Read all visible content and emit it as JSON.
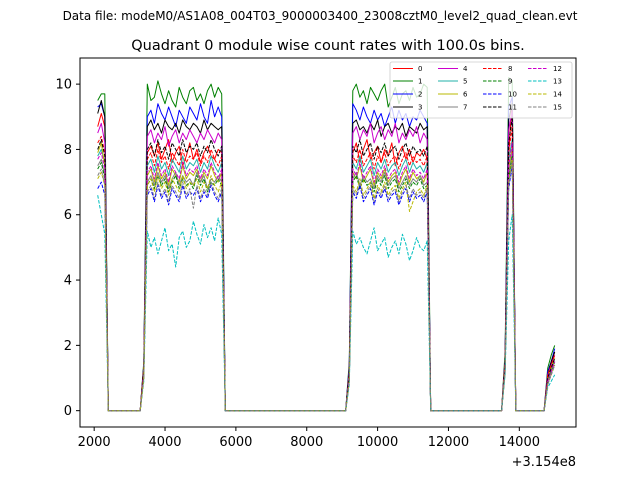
{
  "chart_data": {
    "type": "line",
    "suptitle": "Data file: modeM0/AS1A08_004T03_9000003400_23008cztM0_level2_quad_clean.evt",
    "title": "Quadrant 0 module wise count rates with 100.0s bins.",
    "xlabel": "",
    "ylabel": "",
    "x_offset_label": "+3.154e8",
    "xlim": [
      1600,
      15600
    ],
    "ylim": [
      -0.5,
      10.8
    ],
    "x_ticks": [
      2000,
      4000,
      6000,
      8000,
      10000,
      12000,
      14000
    ],
    "x_tick_labels": [
      "2000",
      "4000",
      "6000",
      "8000",
      "10000",
      "12000",
      "14000"
    ],
    "y_ticks": [
      0,
      2,
      4,
      6,
      8,
      10
    ],
    "y_tick_labels": [
      "0",
      "2",
      "4",
      "6",
      "8",
      "10"
    ],
    "legend_location": "upper right",
    "legend_columns": 4,
    "x": [
      2100,
      2200,
      2300,
      2400,
      3300,
      3400,
      3500,
      3600,
      3700,
      3800,
      3900,
      4000,
      4100,
      4200,
      4300,
      4400,
      4500,
      4600,
      4700,
      4800,
      4900,
      5000,
      5100,
      5200,
      5300,
      5400,
      5500,
      5600,
      5700,
      9100,
      9200,
      9300,
      9400,
      9500,
      9600,
      9700,
      9800,
      9900,
      10000,
      10100,
      10200,
      10300,
      10400,
      10500,
      10600,
      10700,
      10800,
      10900,
      11000,
      11100,
      11200,
      11300,
      11400,
      11500,
      13500,
      13600,
      13700,
      13800,
      13900,
      14700,
      14800,
      14900,
      15000
    ],
    "series": [
      {
        "name": "0",
        "color": "#ff0000",
        "dash": "solid",
        "values": [
          8.7,
          9.1,
          8.7,
          0,
          0,
          1.3,
          7.9,
          8.1,
          7.8,
          8.2,
          7.7,
          8.0,
          8.3,
          7.6,
          7.9,
          8.1,
          7.5,
          7.8,
          8.2,
          7.7,
          8.0,
          7.6,
          7.9,
          8.1,
          7.8,
          7.7,
          8.0,
          7.9,
          0,
          0,
          1.2,
          7.9,
          8.2,
          7.6,
          8.0,
          8.3,
          7.7,
          7.9,
          8.1,
          7.6,
          8.0,
          7.8,
          8.2,
          7.5,
          7.9,
          8.1,
          7.7,
          8.0,
          7.6,
          7.9,
          7.8,
          8.0,
          7.7,
          0,
          0,
          1.5,
          7.9,
          9.5,
          0,
          0,
          1.0,
          1.4,
          1.8
        ]
      },
      {
        "name": "1",
        "color": "#008000",
        "dash": "solid",
        "values": [
          9.5,
          9.7,
          9.7,
          0,
          0,
          1.5,
          10.0,
          9.5,
          9.6,
          10.1,
          9.7,
          9.4,
          9.8,
          9.5,
          9.3,
          9.9,
          9.6,
          9.4,
          9.8,
          9.9,
          9.5,
          9.7,
          9.4,
          9.8,
          10.0,
          9.6,
          9.9,
          9.7,
          0,
          0,
          1.5,
          9.8,
          10.0,
          9.6,
          9.8,
          9.4,
          9.9,
          9.7,
          9.5,
          9.8,
          10.0,
          9.3,
          9.6,
          9.9,
          9.4,
          9.7,
          9.8,
          9.5,
          9.9,
          9.6,
          9.7,
          10.0,
          9.9,
          0,
          0,
          1.8,
          10.2,
          10.1,
          0,
          0,
          1.3,
          1.7,
          2.0
        ]
      },
      {
        "name": "2",
        "color": "#0000ff",
        "dash": "solid",
        "values": [
          9.3,
          9.4,
          9.0,
          0,
          0,
          1.4,
          9.0,
          9.2,
          8.8,
          9.4,
          9.1,
          8.9,
          9.3,
          9.0,
          8.7,
          9.2,
          9.0,
          8.8,
          9.3,
          9.1,
          8.9,
          9.4,
          9.0,
          8.8,
          9.5,
          9.0,
          9.3,
          9.0,
          0,
          0,
          1.4,
          9.4,
          9.2,
          8.9,
          9.3,
          9.0,
          8.8,
          9.2,
          8.9,
          9.1,
          8.7,
          9.0,
          9.3,
          8.8,
          9.2,
          8.9,
          9.1,
          8.7,
          9.0,
          8.9,
          9.2,
          9.0,
          8.8,
          0,
          0,
          1.6,
          9.3,
          9.6,
          0,
          0,
          1.2,
          1.5,
          1.9
        ]
      },
      {
        "name": "3",
        "color": "#000000",
        "dash": "solid",
        "values": [
          9.1,
          9.5,
          9.0,
          0,
          0,
          1.4,
          8.7,
          8.9,
          8.6,
          8.8,
          8.5,
          8.9,
          8.7,
          8.6,
          8.8,
          8.5,
          8.9,
          8.7,
          8.6,
          8.8,
          8.7,
          8.5,
          8.9,
          8.6,
          8.8,
          8.7,
          8.6,
          8.7,
          0,
          0,
          1.3,
          8.8,
          8.9,
          8.6,
          8.7,
          8.5,
          8.8,
          8.6,
          8.9,
          8.4,
          8.7,
          8.8,
          8.5,
          8.7,
          8.6,
          8.8,
          8.4,
          8.7,
          8.6,
          8.5,
          8.8,
          8.6,
          8.7,
          0,
          0,
          1.6,
          8.9,
          9.4,
          0,
          0,
          1.1,
          1.5,
          1.8
        ]
      },
      {
        "name": "4",
        "color": "#cc00cc",
        "dash": "solid",
        "values": [
          8.5,
          8.8,
          8.2,
          0,
          0,
          1.3,
          8.4,
          8.6,
          8.2,
          8.5,
          8.3,
          8.7,
          8.1,
          8.4,
          8.6,
          8.2,
          8.5,
          8.3,
          8.6,
          8.4,
          8.2,
          8.5,
          8.3,
          8.6,
          8.4,
          8.2,
          8.5,
          8.3,
          0,
          0,
          1.2,
          8.5,
          8.7,
          8.3,
          8.6,
          8.4,
          8.8,
          8.2,
          8.5,
          8.7,
          8.3,
          8.6,
          8.4,
          8.8,
          8.2,
          8.5,
          8.3,
          8.6,
          8.4,
          8.7,
          8.2,
          8.5,
          8.3,
          0,
          0,
          1.5,
          8.6,
          9.2,
          0,
          0,
          1.1,
          1.4,
          1.7
        ]
      },
      {
        "name": "5",
        "color": "#20b2aa",
        "dash": "solid",
        "values": [
          7.8,
          8.0,
          7.6,
          0,
          0,
          1.2,
          7.5,
          7.7,
          7.3,
          7.8,
          7.4,
          7.6,
          7.2,
          7.7,
          7.5,
          7.3,
          7.8,
          7.4,
          7.6,
          7.5,
          7.7,
          7.3,
          7.6,
          7.4,
          7.8,
          7.5,
          7.3,
          7.6,
          0,
          0,
          1.1,
          7.6,
          7.4,
          7.8,
          7.3,
          7.5,
          7.7,
          7.2,
          7.6,
          7.4,
          7.7,
          7.3,
          7.5,
          7.6,
          7.2,
          7.5,
          7.7,
          7.3,
          7.6,
          7.4,
          7.5,
          7.3,
          7.6,
          0,
          0,
          1.4,
          7.7,
          8.3,
          0,
          0,
          1.0,
          1.3,
          1.6
        ]
      },
      {
        "name": "6",
        "color": "#b8b800",
        "dash": "solid",
        "values": [
          7.9,
          8.2,
          7.5,
          0,
          0,
          1.2,
          7.2,
          7.4,
          7.0,
          7.5,
          7.1,
          7.3,
          6.9,
          7.4,
          7.2,
          7.0,
          7.5,
          7.1,
          7.3,
          7.2,
          7.4,
          7.0,
          7.3,
          7.1,
          7.5,
          7.2,
          7.0,
          7.3,
          0,
          0,
          1.1,
          7.3,
          7.1,
          7.5,
          7.0,
          7.2,
          7.4,
          6.9,
          7.3,
          7.1,
          7.4,
          7.0,
          7.2,
          7.3,
          6.9,
          7.2,
          7.4,
          7.0,
          7.3,
          7.1,
          7.2,
          7.0,
          7.3,
          0,
          0,
          1.4,
          7.4,
          8.1,
          0,
          0,
          1.0,
          1.3,
          1.6
        ]
      },
      {
        "name": "7",
        "color": "#808080",
        "dash": "solid",
        "values": [
          7.5,
          7.7,
          7.2,
          0,
          0,
          1.1,
          7.0,
          7.2,
          6.9,
          7.3,
          7.0,
          7.2,
          6.8,
          7.1,
          7.3,
          6.9,
          7.2,
          7.0,
          7.1,
          6.9,
          7.3,
          7.0,
          7.2,
          6.8,
          7.1,
          7.0,
          7.2,
          7.0,
          0,
          0,
          1.0,
          7.1,
          7.3,
          6.9,
          7.2,
          7.0,
          7.1,
          6.8,
          7.2,
          7.0,
          7.3,
          6.9,
          7.1,
          7.2,
          6.8,
          7.0,
          7.2,
          6.9,
          7.1,
          7.0,
          7.2,
          6.9,
          7.0,
          0,
          0,
          1.3,
          7.2,
          7.9,
          0,
          0,
          0.9,
          1.2,
          1.5
        ]
      },
      {
        "name": "8",
        "color": "#ff0000",
        "dash": "dashed",
        "values": [
          8.2,
          8.4,
          7.9,
          0,
          0,
          1.3,
          7.7,
          7.9,
          7.5,
          8.0,
          7.6,
          7.8,
          7.4,
          7.9,
          7.7,
          7.5,
          8.0,
          7.6,
          7.8,
          7.7,
          7.9,
          7.5,
          7.8,
          7.6,
          8.0,
          7.7,
          7.5,
          7.8,
          0,
          0,
          1.2,
          7.8,
          7.6,
          8.0,
          7.5,
          7.7,
          7.9,
          7.4,
          7.8,
          7.6,
          7.9,
          7.5,
          7.7,
          7.8,
          7.4,
          7.7,
          7.9,
          7.5,
          7.8,
          7.6,
          7.7,
          7.5,
          7.8,
          0,
          0,
          1.5,
          7.9,
          8.7,
          0,
          0,
          1.1,
          1.4,
          1.7
        ]
      },
      {
        "name": "9",
        "color": "#008000",
        "dash": "dashed",
        "values": [
          7.4,
          7.6,
          7.1,
          0,
          0,
          1.1,
          6.9,
          7.1,
          6.8,
          7.2,
          6.9,
          7.1,
          6.7,
          7.0,
          7.2,
          6.8,
          7.1,
          6.9,
          7.0,
          6.8,
          7.2,
          6.9,
          7.1,
          6.7,
          7.0,
          6.9,
          7.1,
          6.9,
          0,
          0,
          1.0,
          7.0,
          7.2,
          6.8,
          7.1,
          6.9,
          7.0,
          6.7,
          7.1,
          6.9,
          7.2,
          6.8,
          7.0,
          7.1,
          6.7,
          6.9,
          7.1,
          6.8,
          7.0,
          6.9,
          7.1,
          6.8,
          6.9,
          0,
          0,
          1.3,
          7.1,
          7.8,
          0,
          0,
          0.9,
          1.2,
          1.5
        ]
      },
      {
        "name": "10",
        "color": "#0000ff",
        "dash": "dashed",
        "values": [
          6.8,
          7.0,
          6.6,
          0,
          0,
          1.0,
          6.6,
          6.8,
          6.4,
          6.9,
          6.5,
          6.7,
          6.3,
          6.8,
          6.6,
          6.4,
          6.9,
          6.5,
          6.7,
          6.6,
          6.8,
          6.4,
          6.7,
          6.5,
          6.9,
          6.6,
          6.4,
          6.7,
          0,
          0,
          0.9,
          6.7,
          6.5,
          6.9,
          6.4,
          6.6,
          6.8,
          6.3,
          6.7,
          6.5,
          6.8,
          6.4,
          6.6,
          6.7,
          6.3,
          6.6,
          6.8,
          6.4,
          6.7,
          6.5,
          6.6,
          6.4,
          6.7,
          0,
          0,
          1.2,
          6.8,
          7.5,
          0,
          0,
          0.8,
          1.1,
          1.4
        ]
      },
      {
        "name": "11",
        "color": "#000000",
        "dash": "dashed",
        "values": [
          8.0,
          8.3,
          7.8,
          0,
          0,
          1.2,
          8.0,
          8.2,
          7.8,
          8.3,
          7.9,
          8.1,
          7.7,
          8.2,
          8.0,
          7.8,
          8.3,
          7.9,
          8.1,
          8.0,
          8.2,
          7.8,
          8.1,
          7.9,
          8.3,
          8.0,
          7.8,
          8.1,
          0,
          0,
          1.1,
          8.1,
          7.9,
          8.3,
          7.8,
          8.0,
          8.2,
          7.7,
          8.1,
          7.9,
          8.2,
          7.8,
          8.0,
          8.1,
          7.7,
          8.0,
          8.2,
          7.8,
          8.1,
          7.9,
          8.0,
          7.8,
          8.1,
          0,
          0,
          1.4,
          8.2,
          9.0,
          0,
          0,
          1.0,
          1.3,
          1.6
        ]
      },
      {
        "name": "12",
        "color": "#cc00cc",
        "dash": "dashed",
        "values": [
          7.7,
          7.9,
          7.4,
          0,
          0,
          1.1,
          7.3,
          7.5,
          7.1,
          7.6,
          7.2,
          7.4,
          7.0,
          7.5,
          7.3,
          7.1,
          7.6,
          7.2,
          7.4,
          7.3,
          7.5,
          7.1,
          7.4,
          7.2,
          7.6,
          7.3,
          7.1,
          7.4,
          0,
          0,
          1.0,
          7.4,
          7.2,
          7.6,
          7.1,
          7.3,
          7.5,
          7.0,
          7.4,
          7.2,
          7.5,
          7.1,
          7.3,
          7.4,
          7.0,
          7.3,
          7.5,
          7.1,
          7.4,
          7.2,
          7.3,
          7.1,
          7.4,
          0,
          0,
          1.3,
          7.5,
          8.2,
          0,
          0,
          0.9,
          1.2,
          1.5
        ]
      },
      {
        "name": "13",
        "color": "#00bfbf",
        "dash": "dashed",
        "values": [
          6.6,
          6.0,
          5.4,
          0,
          0,
          0.9,
          5.5,
          5.0,
          5.3,
          4.8,
          5.2,
          5.6,
          4.9,
          5.1,
          4.4,
          5.3,
          5.5,
          5.0,
          5.2,
          5.8,
          5.4,
          5.1,
          5.7,
          5.3,
          5.6,
          5.2,
          5.9,
          5.4,
          0,
          0,
          0.8,
          5.5,
          5.1,
          5.3,
          5.0,
          4.8,
          5.2,
          5.6,
          4.9,
          5.1,
          5.3,
          4.7,
          5.0,
          5.2,
          4.8,
          5.4,
          5.1,
          4.6,
          4.9,
          5.3,
          5.0,
          4.9,
          5.2,
          0,
          0,
          1.1,
          5.2,
          6.0,
          0,
          0,
          0.7,
          0.9,
          1.1
        ]
      },
      {
        "name": "14",
        "color": "#b8b800",
        "dash": "dashed",
        "values": [
          7.1,
          7.3,
          6.9,
          0,
          0,
          1.0,
          6.9,
          7.1,
          6.7,
          7.2,
          6.8,
          7.0,
          6.6,
          7.1,
          6.9,
          6.7,
          7.2,
          6.8,
          7.0,
          6.9,
          7.1,
          6.7,
          7.0,
          6.8,
          7.2,
          6.9,
          6.7,
          7.0,
          0,
          0,
          0.9,
          6.9,
          6.7,
          7.1,
          6.6,
          6.8,
          7.0,
          6.5,
          6.9,
          6.7,
          7.0,
          6.6,
          6.8,
          6.9,
          6.5,
          6.8,
          7.0,
          6.1,
          6.4,
          6.7,
          6.8,
          6.6,
          6.9,
          0,
          0,
          1.2,
          7.0,
          7.7,
          0,
          0,
          0.8,
          1.1,
          1.4
        ]
      },
      {
        "name": "15",
        "color": "#808080",
        "dash": "dashed",
        "values": [
          7.2,
          7.4,
          6.9,
          0,
          0,
          1.0,
          6.7,
          6.9,
          6.5,
          7.0,
          6.6,
          6.8,
          6.4,
          6.9,
          6.7,
          6.5,
          7.0,
          6.6,
          6.8,
          6.2,
          6.9,
          6.5,
          6.8,
          6.6,
          7.0,
          6.7,
          6.5,
          6.8,
          0,
          0,
          0.9,
          6.8,
          6.6,
          7.0,
          6.5,
          6.7,
          6.9,
          6.4,
          6.8,
          6.6,
          6.9,
          6.5,
          6.7,
          6.8,
          6.4,
          6.7,
          6.9,
          6.5,
          6.8,
          6.6,
          6.7,
          6.5,
          6.8,
          0,
          0,
          1.2,
          6.9,
          7.6,
          0,
          0,
          0.8,
          1.1,
          1.4
        ]
      }
    ]
  }
}
